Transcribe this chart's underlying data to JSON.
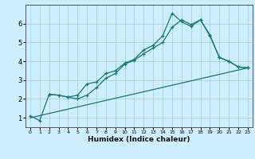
{
  "title": "",
  "xlabel": "Humidex (Indice chaleur)",
  "background_color": "#cceeff",
  "line_color": "#1a7a6e",
  "xlim": [
    -0.5,
    23.5
  ],
  "ylim": [
    0.5,
    7.0
  ],
  "xticks": [
    0,
    1,
    2,
    3,
    4,
    5,
    6,
    7,
    8,
    9,
    10,
    11,
    12,
    13,
    14,
    15,
    16,
    17,
    18,
    19,
    20,
    21,
    22,
    23
  ],
  "yticks": [
    1,
    2,
    3,
    4,
    5,
    6
  ],
  "grid_color": "#aad4d4",
  "line1_x": [
    0,
    1,
    2,
    3,
    4,
    5,
    6,
    7,
    8,
    9,
    10,
    11,
    12,
    13,
    14,
    15,
    16,
    17,
    18,
    19,
    20,
    21,
    22,
    23
  ],
  "line1_y": [
    1.1,
    0.85,
    2.25,
    2.2,
    2.1,
    2.2,
    2.8,
    2.9,
    3.35,
    3.5,
    3.9,
    4.1,
    4.6,
    4.85,
    5.35,
    6.55,
    6.1,
    5.85,
    6.2,
    5.4,
    4.2,
    4.0,
    3.7,
    3.65
  ],
  "line2_x": [
    2,
    3,
    4,
    5,
    6,
    7,
    8,
    9,
    10,
    11,
    12,
    13,
    14,
    15,
    16,
    17,
    18,
    19,
    20,
    21,
    22,
    23
  ],
  "line2_y": [
    2.25,
    2.2,
    2.1,
    2.0,
    2.2,
    2.6,
    3.1,
    3.35,
    3.85,
    4.05,
    4.4,
    4.7,
    5.0,
    5.8,
    6.2,
    5.95,
    6.2,
    5.35,
    4.2,
    4.0,
    3.7,
    3.65
  ],
  "line3_x": [
    0,
    23
  ],
  "line3_y": [
    1.0,
    3.65
  ]
}
